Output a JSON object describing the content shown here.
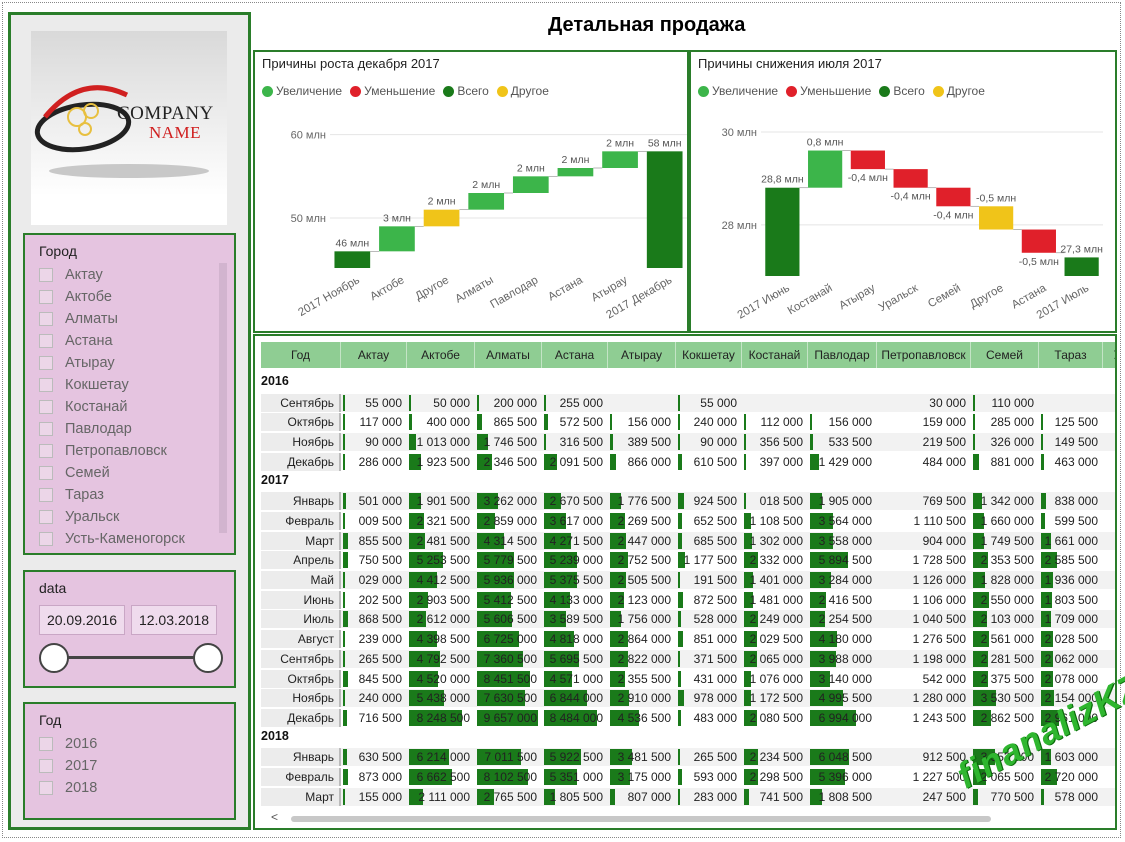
{
  "page": {
    "title": "Детальная продажа"
  },
  "logo": {
    "line1": "COMPANY",
    "line2": "NAME"
  },
  "city_slicer": {
    "title": "Город",
    "items": [
      "Актау",
      "Актобе",
      "Алматы",
      "Астана",
      "Атырау",
      "Кокшетау",
      "Костанай",
      "Павлодар",
      "Петропавловск",
      "Семей",
      "Тараз",
      "Уральск",
      "Усть-Каменогорск"
    ]
  },
  "date_slicer": {
    "title": "data",
    "from": "20.09.2016",
    "to": "12.03.2018"
  },
  "year_slicer": {
    "title": "Год",
    "items": [
      "2016",
      "2017",
      "2018"
    ]
  },
  "colors": {
    "increase": "#3cb54a",
    "decrease": "#e0202a",
    "total": "#1a7a1a",
    "other": "#f0c419",
    "accent_border": "#2a7d2a"
  },
  "legend": {
    "increase": "Увеличение",
    "decrease": "Уменьшение",
    "total": "Всего",
    "other": "Другое"
  },
  "chart_data": [
    {
      "type": "waterfall",
      "title": "Причины роста декабря 2017",
      "yticks": [
        "60 млн",
        "50 млн"
      ],
      "ytick_values": [
        60,
        50
      ],
      "categories": [
        "2017 Ноябрь",
        "Актобе",
        "Другое",
        "Алматы",
        "Павлодар",
        "Астана",
        "Атырау",
        "2017 Декабрь"
      ],
      "labels": [
        "46 млн",
        "3 млн",
        "2 млн",
        "2 млн",
        "2 млн",
        "2 млн",
        "2 млн",
        "58 млн"
      ],
      "kinds": [
        "total",
        "increase",
        "other",
        "increase",
        "increase",
        "increase",
        "increase",
        "total"
      ],
      "start": [
        0,
        46,
        49,
        51,
        53,
        55,
        56,
        0
      ],
      "end": [
        46,
        49,
        51,
        53,
        55,
        56,
        58,
        58
      ],
      "ylim": [
        44,
        62
      ]
    },
    {
      "type": "waterfall",
      "title": "Причины снижения июля 2017",
      "yticks": [
        "30 млн",
        "28 млн"
      ],
      "ytick_values": [
        30,
        28
      ],
      "categories": [
        "2017 Июнь",
        "Костанай",
        "Атырау",
        "Уральск",
        "Семей",
        "Другое",
        "Астана",
        "2017 Июль"
      ],
      "labels": [
        "28,8 млн",
        "0,8 млн",
        "-0,4 млн",
        "-0,4 млн",
        "-0,4 млн",
        "-0,5 млн",
        "-0,5 млн",
        "27,3 млн"
      ],
      "kinds": [
        "total",
        "increase",
        "decrease",
        "decrease",
        "decrease",
        "other",
        "decrease",
        "total"
      ],
      "start": [
        0,
        28.8,
        29.6,
        29.2,
        28.8,
        28.4,
        27.9,
        0
      ],
      "end": [
        28.8,
        29.6,
        29.2,
        28.8,
        28.4,
        27.9,
        27.4,
        27.3
      ],
      "ylim": [
        26.9,
        30.3
      ]
    }
  ],
  "table": {
    "columns": [
      "Год",
      "Актау",
      "Актобе",
      "Алматы",
      "Астана",
      "Атырау",
      "Кокшетау",
      "Костанай",
      "Павлодар",
      "Петропавловск",
      "Семей",
      "Тараз",
      "У"
    ],
    "groups": [
      {
        "year": "2016",
        "rows": [
          {
            "month": "Сентябрь",
            "values": [
              "55 000",
              "50 000",
              "200 000",
              "255 000",
              "",
              "55 000",
              "",
              "",
              "30 000",
              "110 000",
              "",
              ""
            ]
          },
          {
            "month": "Октябрь",
            "values": [
              "117 000",
              "400 000",
              "865 500",
              "572 500",
              "156 000",
              "240 000",
              "112 000",
              "156 000",
              "159 000",
              "285 000",
              "125 500",
              ""
            ]
          },
          {
            "month": "Ноябрь",
            "values": [
              "90 000",
              "1 013 000",
              "1 746 500",
              "316 500",
              "389 500",
              "90 000",
              "356 500",
              "533 500",
              "219 500",
              "326 000",
              "149 500",
              ""
            ]
          },
          {
            "month": "Декабрь",
            "values": [
              "286 000",
              "1 923 500",
              "2 346 500",
              "2 091 500",
              "866 000",
              "610 500",
              "397 000",
              "1 429 000",
              "484 000",
              "881 000",
              "463 000",
              ""
            ]
          }
        ]
      },
      {
        "year": "2017",
        "rows": [
          {
            "month": "Январь",
            "values": [
              "501 000",
              "1 901 500",
              "3 262 000",
              "2 670 500",
              "1 776 500",
              "924 500",
              "018 500",
              "1 905 000",
              "769 500",
              "1 342 000",
              "838 000",
              ""
            ]
          },
          {
            "month": "Февраль",
            "values": [
              "009 500",
              "2 321 500",
              "2 859 000",
              "3 617 000",
              "2 269 500",
              "652 500",
              "1 108 500",
              "3 564 000",
              "1 110 500",
              "1 660 000",
              "599 500",
              ""
            ]
          },
          {
            "month": "Март",
            "values": [
              "855 500",
              "2 481 500",
              "4 314 500",
              "4 271 500",
              "2 447 000",
              "685 500",
              "1 302 000",
              "3 558 000",
              "904 000",
              "1 749 500",
              "1 661 000",
              ""
            ]
          },
          {
            "month": "Апрель",
            "values": [
              "750 500",
              "5 253 500",
              "5 779 500",
              "5 239 000",
              "2 752 500",
              "1 177 500",
              "2 332 000",
              "5 894 500",
              "1 728 500",
              "2 353 500",
              "2 585 500",
              ""
            ]
          },
          {
            "month": "Май",
            "values": [
              "029 000",
              "4 412 500",
              "5 936 000",
              "5 375 500",
              "2 505 500",
              "191 500",
              "1 401 000",
              "3 284 000",
              "1 126 000",
              "1 828 000",
              "1 936 000",
              ""
            ]
          },
          {
            "month": "Июнь",
            "values": [
              "202 500",
              "2 903 500",
              "5 412 500",
              "4 133 000",
              "2 123 000",
              "872 500",
              "1 481 000",
              "2 416 500",
              "1 106 000",
              "2 550 000",
              "1 803 500",
              ""
            ]
          },
          {
            "month": "Июль",
            "values": [
              "868 500",
              "2 612 000",
              "5 606 500",
              "3 589 500",
              "1 756 000",
              "528 000",
              "2 249 000",
              "2 254 500",
              "1 040 500",
              "2 103 000",
              "1 709 000",
              ""
            ]
          },
          {
            "month": "Август",
            "values": [
              "239 000",
              "4 398 500",
              "6 725 000",
              "4 818 000",
              "2 864 000",
              "851 000",
              "2 029 500",
              "4 180 000",
              "1 276 500",
              "2 561 000",
              "2 028 500",
              ""
            ]
          },
          {
            "month": "Сентябрь",
            "values": [
              "265 500",
              "4 792 500",
              "7 360 500",
              "5 695 500",
              "2 822 000",
              "371 500",
              "2 065 000",
              "3 988 000",
              "1 198 000",
              "2 281 500",
              "2 062 000",
              ""
            ]
          },
          {
            "month": "Октябрь",
            "values": [
              "845 500",
              "4 520 000",
              "8 451 500",
              "4 571 000",
              "2 355 500",
              "431 000",
              "1 076 000",
              "3 140 000",
              "542 000",
              "2 375 500",
              "2 078 000",
              ""
            ]
          },
          {
            "month": "Ноябрь",
            "values": [
              "240 000",
              "5 438 000",
              "7 630 500",
              "6 844 000",
              "2 910 000",
              "978 000",
              "1 172 500",
              "4 995 500",
              "1 280 000",
              "3 530 500",
              "2 154 000",
              ""
            ]
          },
          {
            "month": "Декабрь",
            "values": [
              "716 500",
              "8 248 500",
              "9 657 000",
              "8 484 000",
              "4 536 500",
              "483 000",
              "2 080 500",
              "6 994 000",
              "1 243 500",
              "2 862 500",
              "2 961 000",
              ""
            ]
          }
        ]
      },
      {
        "year": "2018",
        "rows": [
          {
            "month": "Январь",
            "values": [
              "630 500",
              "6 214 000",
              "7 011 500",
              "5 922 500",
              "3 481 500",
              "265 500",
              "2 234 500",
              "6 048 500",
              "912 500",
              "3 353 500",
              "1 603 000",
              ""
            ]
          },
          {
            "month": "Февраль",
            "values": [
              "873 000",
              "6 662 500",
              "8 102 500",
              "5 351 000",
              "3 175 000",
              "593 000",
              "2 298 500",
              "5 396 000",
              "1 227 500",
              "2 065 500",
              "2 720 000",
              ""
            ]
          },
          {
            "month": "Март",
            "values": [
              "155 000",
              "2 111 000",
              "2 765 500",
              "1 805 500",
              "807 000",
              "283 000",
              "741 500",
              "1 808 500",
              "247 500",
              "770 500",
              "578 000",
              ""
            ]
          }
        ]
      }
    ]
  },
  "scroll": {
    "left_arrow": "<"
  },
  "watermark": "finanalizKZ"
}
